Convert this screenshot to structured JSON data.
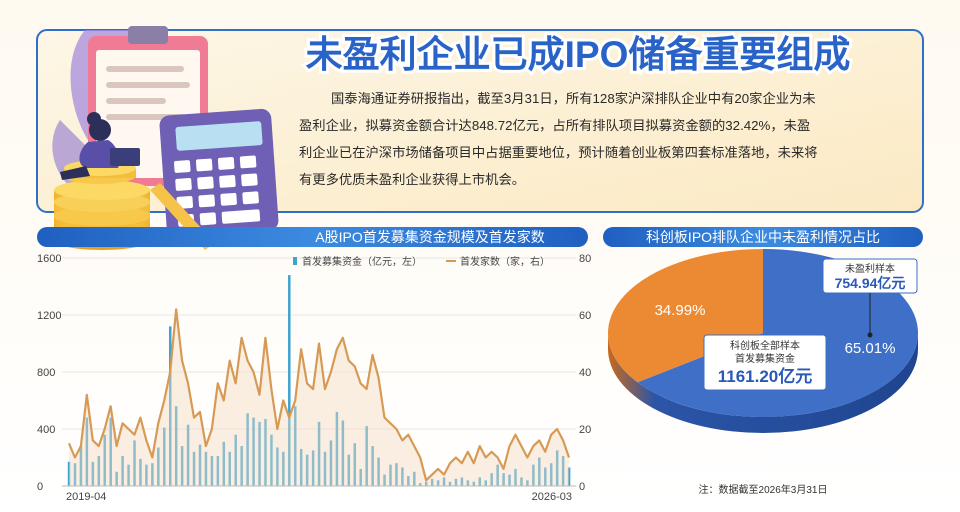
{
  "headline": "未盈利企业已成IPO储备重要组成",
  "summary_lines": [
    "国泰海通证券研报指出，截至3月31日，所有128家沪深排队企业中有20家企业为未",
    "盈利企业，拟募资金额合计达848.72亿元，占所有排队项目拟募资金额的32.42%，未盈",
    "利企业已在沪深市场储备项目中占据重要地位，预计随着创业板第四套标准落地，未来将",
    "有更多优质未盈利企业获得上市机会。"
  ],
  "colors": {
    "bar": "#3ea3cf",
    "line": "#d79a55",
    "pie_blue": "#3f6fc6",
    "pie_orange": "#ec8a33",
    "header_band": "#2f7fd6",
    "callout_num": "#2a58b8"
  },
  "left_panel": {
    "title": "A股IPO首发募集资金规模及首发家数"
  },
  "right_panel": {
    "title": "科创板IPO排队企业中未盈利情况占比"
  },
  "chart_data": [
    {
      "type": "bar+line",
      "title": "A股IPO首发募集资金规模及首发家数",
      "legend": [
        {
          "name": "首发募集资金（亿元，左）",
          "kind": "bar"
        },
        {
          "name": "首发家数（家，右）",
          "kind": "line"
        }
      ],
      "x_tick_labels": [
        "2019-04",
        "2026-03"
      ],
      "y_left": {
        "ylim": [
          0,
          1600
        ],
        "ticks": [
          "0",
          "400",
          "800",
          "1200",
          "1600"
        ]
      },
      "y_right": {
        "ylim": [
          0,
          80
        ],
        "ticks": [
          "0",
          "20",
          "40",
          "60",
          "80"
        ]
      },
      "series": [
        {
          "name": "首发募集资金（亿元，左）",
          "axis": "left",
          "values": [
            170,
            160,
            280,
            480,
            170,
            210,
            360,
            480,
            100,
            210,
            150,
            320,
            190,
            150,
            160,
            270,
            410,
            1120,
            560,
            280,
            430,
            240,
            290,
            240,
            210,
            210,
            310,
            240,
            360,
            280,
            510,
            480,
            450,
            470,
            360,
            270,
            240,
            1480,
            560,
            260,
            220,
            250,
            450,
            240,
            320,
            520,
            460,
            220,
            300,
            120,
            420,
            280,
            200,
            80,
            150,
            160,
            130,
            70,
            100,
            20,
            30,
            50,
            40,
            60,
            30,
            50,
            60,
            40,
            30,
            60,
            40,
            90,
            150,
            90,
            80,
            120,
            60,
            40,
            150,
            200,
            130,
            160,
            250,
            210,
            130
          ]
        },
        {
          "name": "首发家数（家，右）",
          "axis": "right",
          "values": [
            15,
            10,
            14,
            32,
            16,
            14,
            20,
            28,
            14,
            22,
            20,
            18,
            24,
            16,
            10,
            22,
            30,
            40,
            62,
            44,
            36,
            24,
            26,
            14,
            20,
            36,
            30,
            44,
            36,
            52,
            44,
            40,
            32,
            52,
            34,
            20,
            30,
            24,
            30,
            48,
            36,
            34,
            50,
            34,
            40,
            48,
            52,
            44,
            42,
            36,
            34,
            46,
            38,
            24,
            22,
            20,
            16,
            18,
            14,
            10,
            2,
            4,
            6,
            4,
            8,
            10,
            8,
            12,
            8,
            14,
            10,
            12,
            10,
            6,
            14,
            18,
            14,
            10,
            14,
            16,
            12,
            18,
            20,
            16,
            10
          ]
        }
      ]
    },
    {
      "type": "pie",
      "title": "科创板IPO排队企业中未盈利情况占比",
      "slices": [
        {
          "label": "65.01%",
          "value": 65.01
        },
        {
          "label": "34.99%",
          "value": 34.99
        }
      ],
      "annotations": [
        {
          "text": "未盈利样本",
          "value": "754.94亿元"
        },
        {
          "text": "科创板全部样本",
          "text2": "首发募集资金",
          "value": "1161.20亿元"
        }
      ]
    }
  ],
  "footnote": "注：数据截至2026年3月31日"
}
